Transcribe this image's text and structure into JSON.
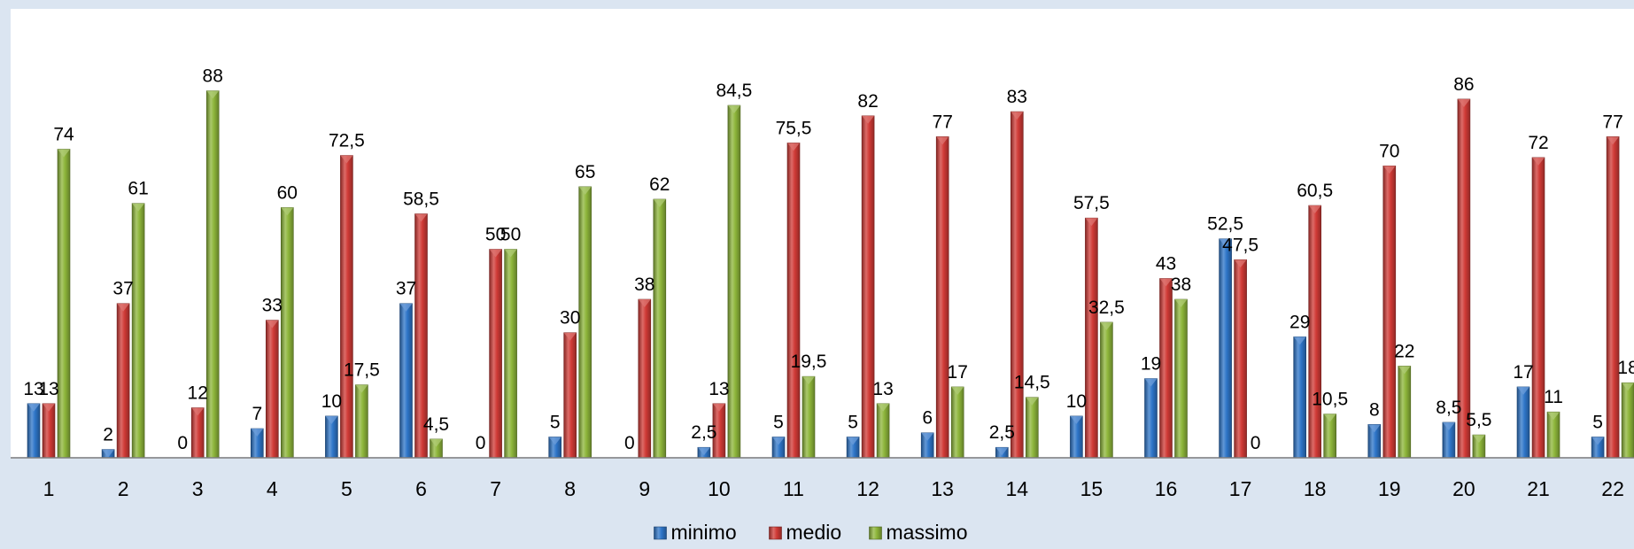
{
  "chart_data": {
    "type": "bar",
    "categories": [
      "1",
      "2",
      "3",
      "4",
      "5",
      "6",
      "7",
      "8",
      "9",
      "10",
      "11",
      "12",
      "13",
      "14",
      "15",
      "16",
      "17",
      "18",
      "19",
      "20",
      "21",
      "22"
    ],
    "series": [
      {
        "name": "minimo",
        "color": "#2e75c8",
        "values": [
          13,
          2,
          0,
          7,
          10,
          37,
          0,
          5,
          0,
          2.5,
          5,
          5,
          6,
          2.5,
          10,
          19,
          52.5,
          29,
          8,
          8.5,
          17,
          5
        ],
        "labels": [
          "13",
          "2",
          "0",
          "7",
          "10",
          "37",
          "0",
          "5",
          "0",
          "2,5",
          "5",
          "5",
          "6",
          "2,5",
          "10",
          "19",
          "52,5",
          "29",
          "8",
          "8,5",
          "17",
          "5"
        ]
      },
      {
        "name": "medio",
        "color": "#d03a36",
        "values": [
          13,
          37,
          12,
          33,
          72.5,
          58.5,
          50,
          30,
          38,
          13,
          75.5,
          82,
          77,
          83,
          57.5,
          43,
          47.5,
          60.5,
          70,
          86,
          72,
          77
        ],
        "labels": [
          "13",
          "37",
          "12",
          "33",
          "72,5",
          "58,5",
          "50",
          "30",
          "38",
          "13",
          "75,5",
          "82",
          "77",
          "83",
          "57,5",
          "43",
          "47,5",
          "60,5",
          "70",
          "86",
          "72",
          "77"
        ]
      },
      {
        "name": "massimo",
        "color": "#8db53a",
        "values": [
          74,
          61,
          88,
          60,
          17.5,
          4.5,
          50,
          65,
          62,
          84.5,
          19.5,
          13,
          17,
          14.5,
          32.5,
          38,
          0,
          10.5,
          22,
          5.5,
          11,
          18
        ],
        "labels": [
          "74",
          "61",
          "88",
          "60",
          "17,5",
          "4,5",
          "50",
          "65",
          "62",
          "84,5",
          "19,5",
          "13",
          "17",
          "14,5",
          "32,5",
          "38",
          "0",
          "10,5",
          "22",
          "5,5",
          "11",
          "18"
        ]
      }
    ],
    "ylim": [
      0,
      100
    ],
    "legend_position": "bottom",
    "grid": false
  }
}
